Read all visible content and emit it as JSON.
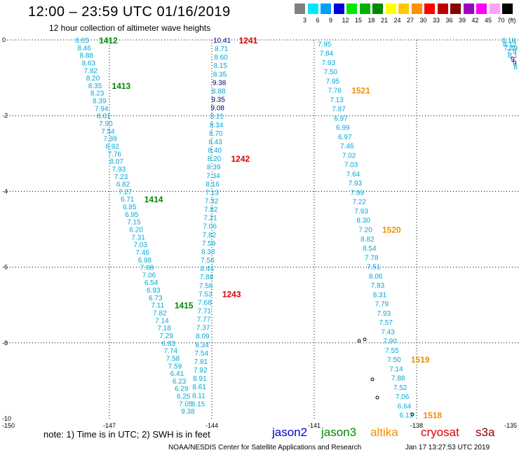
{
  "header": {
    "title": "12:00 – 23:59 UTC 01/16/2019",
    "subtitle": "12 hour collection of altimeter wave heights"
  },
  "legend": {
    "unit": "(ft)",
    "items": [
      {
        "color": "#808080",
        "label": "3"
      },
      {
        "color": "#00e8ff",
        "label": "6"
      },
      {
        "color": "#00a0ff",
        "label": "9"
      },
      {
        "color": "#0000e0",
        "label": "12"
      },
      {
        "color": "#00e800",
        "label": "15"
      },
      {
        "color": "#00b400",
        "label": "18"
      },
      {
        "color": "#008800",
        "label": "21"
      },
      {
        "color": "#ffff00",
        "label": "24"
      },
      {
        "color": "#ffc800",
        "label": "27"
      },
      {
        "color": "#ff9000",
        "label": "30"
      },
      {
        "color": "#ff0000",
        "label": "33"
      },
      {
        "color": "#c00000",
        "label": "36"
      },
      {
        "color": "#880000",
        "label": "39"
      },
      {
        "color": "#a000c0",
        "label": "42"
      },
      {
        "color": "#ff00ff",
        "label": "45"
      },
      {
        "color": "#ffa0ff",
        "label": "70"
      },
      {
        "color": "#000000",
        "label": ""
      }
    ]
  },
  "map": {
    "lon_labels": [
      "-150",
      "-147",
      "-144",
      "-141",
      "-138",
      "-135"
    ],
    "lat_labels": [
      "0",
      "-2",
      "-4",
      "-6",
      "-8",
      "-10"
    ],
    "lon_range": [
      -150,
      -135
    ],
    "lat_range": [
      0,
      -10
    ],
    "colors": {
      "cyan": "#00a8d8",
      "blue": "#0000c8",
      "darkblue": "#000080",
      "green": "#008800",
      "red": "#e00000",
      "orange": "#f09000"
    },
    "tracks": [
      {
        "values": [
          "8.05",
          "8.46",
          "8.88",
          "8.63",
          "7.82",
          "8.20",
          "8.35",
          "8.23",
          "8.39",
          "7.94",
          "8.01",
          "7.90",
          "7.54",
          "7.39",
          "6.92",
          "7.76",
          "8.07",
          "7.93",
          "7.23",
          "6.82",
          "7.27",
          "6.71",
          "6.85",
          "6.95",
          "7.15",
          "6.20",
          "7.31",
          "7.03",
          "7.46",
          "6.98",
          "7.08",
          "7.06",
          "6.54",
          "6.93",
          "6.73",
          "7.11",
          "7.82",
          "7.14",
          "7.18",
          "7.29",
          "6.83",
          "7.74",
          "7.58",
          "7.59",
          "6.41",
          "6.23",
          "6.29",
          "6.25",
          "7.05",
          "9.38"
        ],
        "lon_start": -147.8,
        "lat_start": 0.0,
        "lon_end": -144.7,
        "lat_end": -9.8,
        "color_key": "cyan",
        "labels": [
          {
            "text": "1412",
            "at": 0,
            "color": "green"
          },
          {
            "text": "1413",
            "at": 6,
            "color": "green"
          },
          {
            "text": "1414",
            "at": 21,
            "color": "green"
          },
          {
            "text": "1415",
            "at": 35,
            "color": "green"
          }
        ]
      },
      {
        "values": [
          "10.41",
          "8.71",
          "8.60",
          "8.15",
          "8.35",
          "9.38",
          "8.88",
          "9.35",
          "9.08",
          "8.21",
          "8.34",
          "8.70",
          "8.43",
          "8.40",
          "8.20",
          "8.39",
          "7.34",
          "8.16",
          "7.13",
          "7.32",
          "7.82",
          "7.21",
          "7.06",
          "7.82",
          "7.59",
          "8.38",
          "7.56",
          "8.44",
          "7.88",
          "7.58",
          "7.53",
          "7.68",
          "7.71",
          "7.77",
          "7.37",
          "8.09",
          "8.34",
          "7.54",
          "7.81",
          "7.92",
          "8.91",
          "8.61",
          "8.11",
          "8.15"
        ],
        "lon_start": -143.7,
        "lat_start": 0.0,
        "lon_end": -144.4,
        "lat_end": -9.6,
        "color_key": "cyan",
        "highlight": [
          0,
          5,
          7,
          8
        ],
        "labels": [
          {
            "text": "1241",
            "at": 0,
            "color": "red"
          },
          {
            "text": "1242",
            "at": 14,
            "color": "red"
          },
          {
            "text": "1243",
            "at": 30,
            "color": "red"
          }
        ]
      },
      {
        "values": [
          "7.95",
          "7.84",
          "7.93",
          "7.50",
          "7.95",
          "7.76",
          "7.13",
          "7.87",
          "6.97",
          "6.99",
          "6.97",
          "7.46",
          "7.02",
          "7.03",
          "7.64",
          "7.93",
          "7.99",
          "7.22",
          "7.93",
          "8.30",
          "7.20",
          "8.82",
          "8.54",
          "7.78",
          "7.51",
          "8.06",
          "7.83",
          "8.31",
          "7.79",
          "7.93",
          "7.57",
          "7.43",
          "7.90",
          "7.55",
          "7.50",
          "7.14",
          "7.88",
          "7.52",
          "7.06",
          "6.64",
          "6.13"
        ],
        "lon_start": -140.7,
        "lat_start": -0.1,
        "lon_end": -138.3,
        "lat_end": -9.9,
        "color_key": "cyan",
        "labels": [
          {
            "text": "1521",
            "at": 5,
            "color": "orange"
          },
          {
            "text": "1520",
            "at": 20,
            "color": "orange"
          },
          {
            "text": "1519",
            "at": 34,
            "color": "orange"
          },
          {
            "text": "1518",
            "at": 40,
            "color": "orange"
          }
        ]
      },
      {
        "values": [
          "8.18",
          "8.12",
          "7.89",
          "7.9",
          "8.1",
          "9.",
          "9",
          "8"
        ],
        "lon_start": -135.3,
        "lat_start": 0.0,
        "lon_end": -135.1,
        "lat_end": -0.7,
        "color_key": "cyan",
        "highlight": [
          5,
          6
        ],
        "labels": []
      }
    ]
  },
  "footer": {
    "note": "note:  1) Time is in UTC;  2) SWH is in feet",
    "satellites": [
      {
        "name": "jason2",
        "color": "#0000c8"
      },
      {
        "name": "jason3",
        "color": "#008800"
      },
      {
        "name": "altika",
        "color": "#f09000"
      },
      {
        "name": "cryosat",
        "color": "#e00000"
      },
      {
        "name": "s3a",
        "color": "#880000"
      }
    ],
    "credit": "NOAA/NESDIS Center for Satellite Applications and Research",
    "timestamp": "Jan 17 13:27:53 UTC 2019"
  }
}
